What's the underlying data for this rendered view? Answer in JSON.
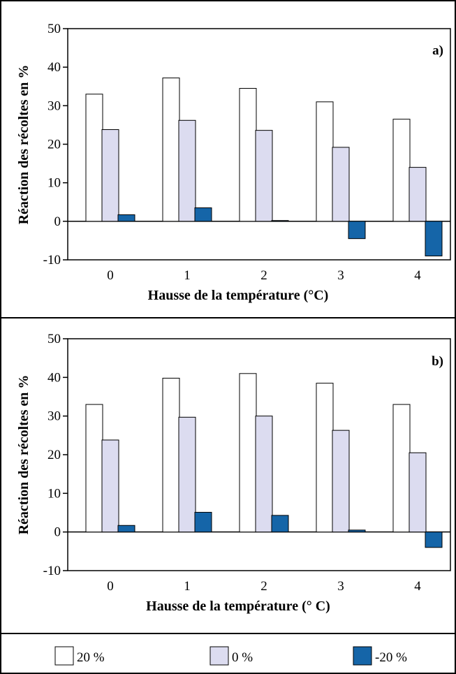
{
  "chart_data": [
    {
      "type": "bar",
      "panel_label": "a)",
      "categories": [
        "0",
        "1",
        "2",
        "3",
        "4"
      ],
      "xlabel": "Hausse de la température (°C)",
      "ylabel": "Réaction des récoltes en %",
      "ylim": [
        -10,
        50
      ],
      "yticks": [
        "-10",
        "0",
        "10",
        "20",
        "30",
        "40",
        "50"
      ],
      "grid": false,
      "series": [
        {
          "name": "20 %",
          "values": [
            33.0,
            37.2,
            34.5,
            31.0,
            26.5
          ]
        },
        {
          "name": "0 %",
          "values": [
            23.8,
            26.2,
            23.6,
            19.2,
            14.0
          ]
        },
        {
          "name": "-20 %",
          "values": [
            1.7,
            3.5,
            0.2,
            -4.5,
            -9.0
          ]
        }
      ]
    },
    {
      "type": "bar",
      "panel_label": "b)",
      "categories": [
        "0",
        "1",
        "2",
        "3",
        "4"
      ],
      "xlabel": "Hausse de la température (° C)",
      "ylabel": "Réaction des récoltes en %",
      "ylim": [
        -10,
        50
      ],
      "yticks": [
        "-10",
        "0",
        "10",
        "20",
        "30",
        "40",
        "50"
      ],
      "grid": false,
      "series": [
        {
          "name": "20 %",
          "values": [
            33.0,
            39.8,
            41.0,
            38.5,
            33.0
          ]
        },
        {
          "name": "0 %",
          "values": [
            23.8,
            29.7,
            30.0,
            26.3,
            20.5
          ]
        },
        {
          "name": "-20 %",
          "values": [
            1.7,
            5.1,
            4.3,
            0.5,
            -4.0
          ]
        }
      ]
    }
  ],
  "legend": {
    "placement": "bottom",
    "items": [
      {
        "label": "20 %",
        "color": "#ffffff"
      },
      {
        "label": "0 %",
        "color": "#dcdcf0"
      },
      {
        "label": "-20 %",
        "color": "#1565a8"
      }
    ]
  },
  "colors": {
    "series_20": "#ffffff",
    "series_0": "#dcdcf0",
    "series_minus20": "#1565a8",
    "border": "#000000"
  }
}
